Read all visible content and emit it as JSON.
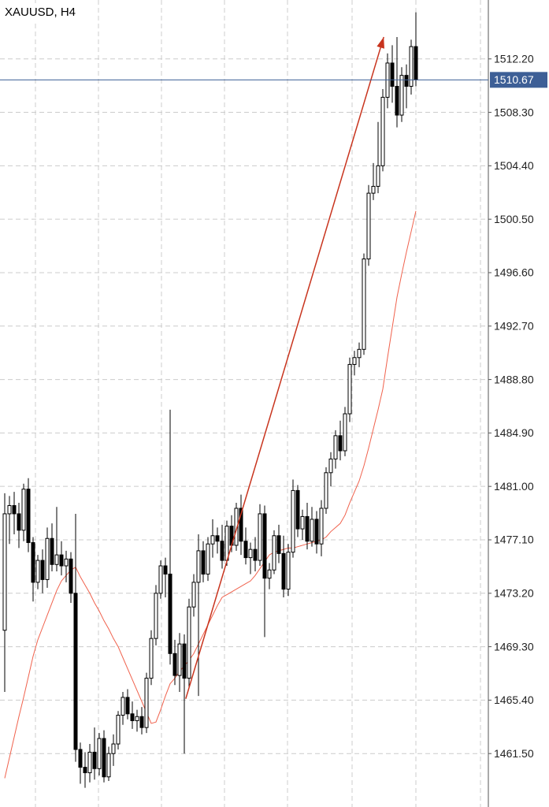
{
  "chart_data": {
    "type": "candlestick",
    "title": "XAUUSD, H4",
    "ylim": [
      1457.6,
      1516.5
    ],
    "yticks": [
      {
        "value": 1461.5,
        "label": "1461.50"
      },
      {
        "value": 1465.4,
        "label": "1465.40"
      },
      {
        "value": 1469.3,
        "label": "1469.30"
      },
      {
        "value": 1473.2,
        "label": "1473.20"
      },
      {
        "value": 1477.1,
        "label": "1477.10"
      },
      {
        "value": 1481.0,
        "label": "1481.00"
      },
      {
        "value": 1484.9,
        "label": "1484.90"
      },
      {
        "value": 1488.8,
        "label": "1488.80"
      },
      {
        "value": 1492.7,
        "label": "1492.70"
      },
      {
        "value": 1496.6,
        "label": "1496.60"
      },
      {
        "value": 1500.5,
        "label": "1500.50"
      },
      {
        "value": 1504.4,
        "label": "1504.40"
      },
      {
        "value": 1508.3,
        "label": "1508.30"
      },
      {
        "value": 1512.2,
        "label": "1512.20"
      }
    ],
    "grid": true,
    "up_color": "#ffffff",
    "down_color": "#000000",
    "open": [
      1470.5,
      1479.0,
      1479.6,
      1479.0,
      1477.8,
      1480.8,
      1476.9,
      1474.0,
      1475.6,
      1474.2,
      1477.2,
      1475.3,
      1476.0,
      1475.2,
      1475.7,
      1473.2,
      1461.8,
      1460.5,
      1460.1,
      1461.6,
      1460.4,
      1462.6,
      1459.8,
      1461.5,
      1462.2,
      1464.3,
      1465.6,
      1464.4,
      1463.9,
      1464.2,
      1463.4,
      1467.0,
      1469.9,
      1473.2,
      1475.2,
      1474.6,
      1468.8,
      1467.2,
      1469.5,
      1467.0,
      1472.2,
      1474.0,
      1476.3,
      1474.6,
      1476.8,
      1477.4,
      1477.0,
      1475.6,
      1478.1,
      1476.7,
      1479.4,
      1477.0,
      1475.8,
      1476.4,
      1475.6,
      1479.0,
      1474.3,
      1474.9,
      1477.4,
      1476.1,
      1473.5,
      1476.2,
      1480.7,
      1477.9,
      1478.8,
      1477.0,
      1478.6,
      1476.8,
      1479.4,
      1482.0,
      1483.0,
      1484.7,
      1483.6,
      1486.3,
      1489.9,
      1490.4,
      1491.0,
      1497.6,
      1502.4,
      1502.9,
      1504.4,
      1509.4,
      1511.9,
      1510.2,
      1508.1,
      1511.0,
      1510.2,
      1513.1
    ],
    "high": [
      1480.5,
      1480.3,
      1480.6,
      1479.8,
      1481.2,
      1481.6,
      1477.3,
      1476.0,
      1476.4,
      1478.0,
      1478.3,
      1479.5,
      1477.0,
      1476.3,
      1476.2,
      1479.0,
      1462.3,
      1461.6,
      1462.2,
      1463.4,
      1463.0,
      1463.2,
      1462.0,
      1462.9,
      1464.6,
      1466.0,
      1466.2,
      1465.3,
      1464.7,
      1464.9,
      1467.4,
      1470.5,
      1473.8,
      1475.6,
      1475.8,
      1486.6,
      1469.8,
      1470.3,
      1470.2,
      1472.8,
      1474.6,
      1477.5,
      1477.0,
      1477.3,
      1478.6,
      1478.0,
      1478.2,
      1478.5,
      1478.9,
      1479.8,
      1480.4,
      1478.0,
      1476.9,
      1477.3,
      1479.7,
      1479.6,
      1475.4,
      1477.8,
      1478.2,
      1477.4,
      1476.8,
      1481.5,
      1481.1,
      1479.3,
      1479.8,
      1479.5,
      1479.2,
      1480.0,
      1482.4,
      1483.5,
      1485.1,
      1485.8,
      1486.8,
      1490.4,
      1490.9,
      1491.5,
      1498.0,
      1503.0,
      1504.6,
      1507.6,
      1510.0,
      1512.6,
      1513.2,
      1513.8,
      1511.6,
      1511.8,
      1513.6,
      1515.6
    ],
    "low": [
      1466.0,
      1476.8,
      1477.5,
      1476.5,
      1477.0,
      1476.2,
      1472.6,
      1473.5,
      1473.2,
      1473.6,
      1474.8,
      1474.8,
      1474.5,
      1474.0,
      1472.5,
      1460.9,
      1459.3,
      1459.0,
      1459.4,
      1459.6,
      1459.9,
      1459.4,
      1459.5,
      1460.6,
      1461.8,
      1463.6,
      1464.0,
      1463.3,
      1463.1,
      1462.9,
      1463.0,
      1466.5,
      1469.4,
      1472.8,
      1472.9,
      1468.0,
      1466.5,
      1466.0,
      1461.5,
      1466.3,
      1471.5,
      1465.7,
      1474.0,
      1474.1,
      1475.8,
      1476.1,
      1475.0,
      1475.2,
      1476.2,
      1476.3,
      1476.0,
      1475.3,
      1474.6,
      1474.8,
      1475.2,
      1470.0,
      1473.5,
      1474.6,
      1475.4,
      1472.9,
      1473.0,
      1475.8,
      1477.3,
      1477.1,
      1476.4,
      1476.6,
      1476.1,
      1475.9,
      1479.0,
      1481.0,
      1482.3,
      1482.9,
      1483.2,
      1485.7,
      1489.1,
      1489.7,
      1490.6,
      1497.1,
      1501.9,
      1502.4,
      1504.0,
      1508.6,
      1509.0,
      1507.2,
      1507.6,
      1508.6,
      1509.6,
      1510.2
    ],
    "close": [
      1479.0,
      1479.6,
      1479.0,
      1477.8,
      1480.8,
      1476.9,
      1474.0,
      1475.6,
      1474.2,
      1477.2,
      1475.3,
      1476.0,
      1475.2,
      1475.7,
      1473.2,
      1461.8,
      1460.5,
      1460.1,
      1461.6,
      1460.4,
      1462.6,
      1459.8,
      1461.5,
      1462.2,
      1464.3,
      1465.6,
      1464.4,
      1463.9,
      1464.2,
      1463.4,
      1467.0,
      1469.9,
      1473.2,
      1475.2,
      1474.6,
      1468.8,
      1467.2,
      1469.5,
      1467.0,
      1472.2,
      1474.0,
      1476.3,
      1474.6,
      1476.8,
      1477.4,
      1477.0,
      1475.6,
      1478.1,
      1476.7,
      1479.4,
      1477.0,
      1475.8,
      1476.4,
      1475.6,
      1479.0,
      1474.3,
      1474.9,
      1477.4,
      1476.1,
      1473.5,
      1476.2,
      1480.7,
      1477.9,
      1478.8,
      1477.0,
      1478.6,
      1476.8,
      1479.4,
      1482.0,
      1483.0,
      1484.7,
      1483.6,
      1486.3,
      1489.9,
      1490.4,
      1491.0,
      1497.6,
      1502.4,
      1502.9,
      1504.4,
      1509.4,
      1511.9,
      1510.2,
      1508.1,
      1511.0,
      1510.2,
      1513.1,
      1510.67
    ],
    "ma": {
      "color": "#f0624d",
      "values": [
        1459.7,
        1461.2,
        1462.7,
        1464.2,
        1465.6,
        1467.1,
        1468.6,
        1469.8,
        1470.7,
        1471.6,
        1472.5,
        1473.4,
        1474.1,
        1474.5,
        1474.9,
        1475.1,
        1474.4,
        1473.8,
        1473.2,
        1472.5,
        1471.9,
        1471.2,
        1470.6,
        1469.9,
        1469.3,
        1468.5,
        1467.7,
        1466.9,
        1466.1,
        1465.3,
        1464.5,
        1463.7,
        1463.8,
        1464.7,
        1465.7,
        1466.6,
        1467.0,
        1467.5,
        1467.9,
        1468.3,
        1468.8,
        1469.5,
        1470.2,
        1470.9,
        1471.6,
        1472.3,
        1472.9,
        1473.1,
        1473.3,
        1473.5,
        1473.7,
        1473.9,
        1474.1,
        1474.5,
        1475.0,
        1475.5,
        1476.0,
        1476.2,
        1476.3,
        1476.4,
        1476.5,
        1476.5,
        1476.6,
        1476.7,
        1476.8,
        1476.9,
        1477.0,
        1477.1,
        1477.3,
        1477.7,
        1478.0,
        1478.3,
        1478.9,
        1479.8,
        1480.6,
        1481.4,
        1482.5,
        1483.8,
        1485.2,
        1486.6,
        1488.1,
        1490.4,
        1492.6,
        1494.8,
        1496.5,
        1498.1,
        1499.6,
        1501.1
      ]
    },
    "last_price": {
      "value": 1510.67,
      "color": "#3d5f96"
    },
    "arrow": {
      "color": "#c8341e",
      "from": {
        "x": 38.3,
        "y": 1465.5
      },
      "to": {
        "x": 80.2,
        "y": 1513.8
      }
    }
  }
}
